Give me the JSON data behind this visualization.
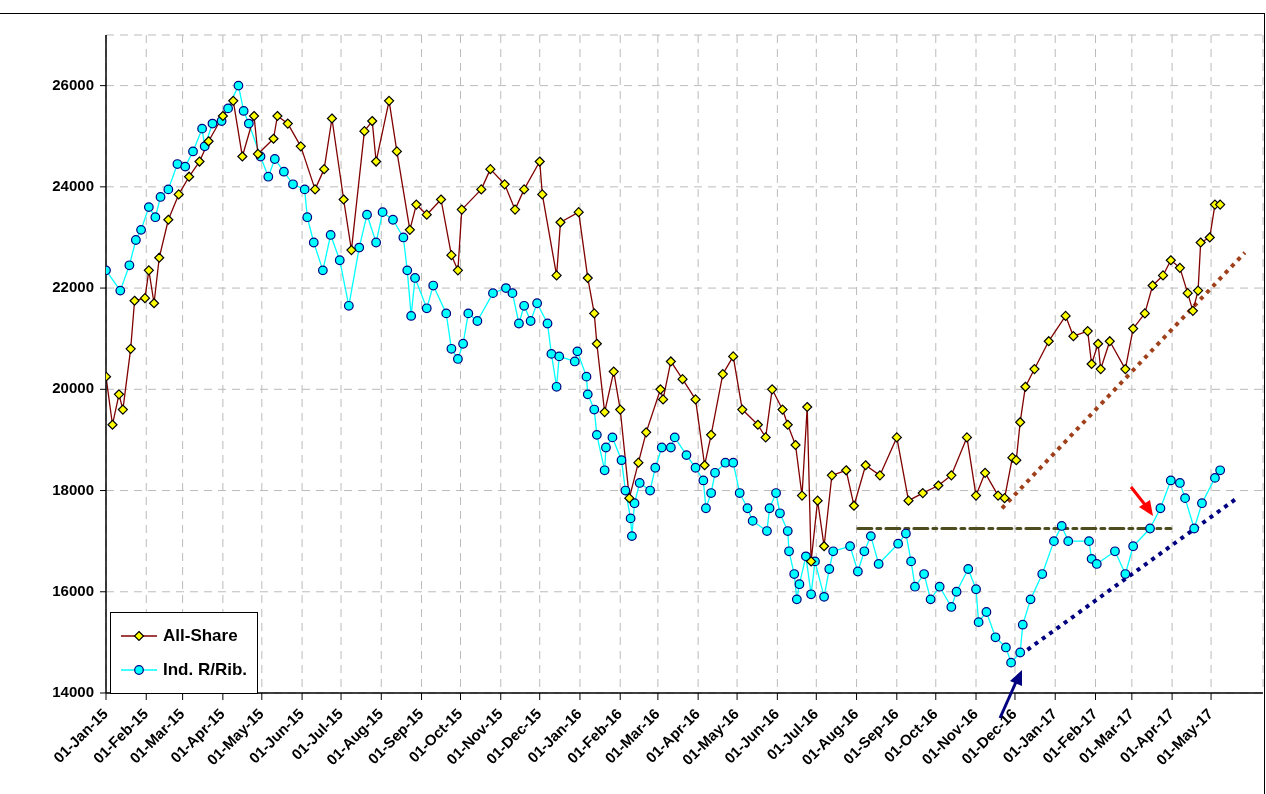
{
  "chart_data": {
    "type": "line",
    "xlim": [
      "2015-01-01",
      "2017-06-10"
    ],
    "xticks": [
      {
        "value": "2015-01-01",
        "label": "01-Jan-15"
      },
      {
        "value": "2015-02-01",
        "label": "01-Feb-15"
      },
      {
        "value": "2015-03-01",
        "label": "01-Mar-15"
      },
      {
        "value": "2015-04-01",
        "label": "01-Apr-15"
      },
      {
        "value": "2015-05-01",
        "label": "01-May-15"
      },
      {
        "value": "2015-06-01",
        "label": "01-Jun-15"
      },
      {
        "value": "2015-07-01",
        "label": "01-Jul-15"
      },
      {
        "value": "2015-08-01",
        "label": "01-Aug-15"
      },
      {
        "value": "2015-09-01",
        "label": "01-Sep-15"
      },
      {
        "value": "2015-10-01",
        "label": "01-Oct-15"
      },
      {
        "value": "2015-11-01",
        "label": "01-Nov-15"
      },
      {
        "value": "2015-12-01",
        "label": "01-Dec-15"
      },
      {
        "value": "2016-01-01",
        "label": "01-Jan-16"
      },
      {
        "value": "2016-02-01",
        "label": "01-Feb-16"
      },
      {
        "value": "2016-03-01",
        "label": "01-Mar-16"
      },
      {
        "value": "2016-04-01",
        "label": "01-Apr-16"
      },
      {
        "value": "2016-05-01",
        "label": "01-May-16"
      },
      {
        "value": "2016-06-01",
        "label": "01-Jun-16"
      },
      {
        "value": "2016-07-01",
        "label": "01-Jul-16"
      },
      {
        "value": "2016-08-01",
        "label": "01-Aug-16"
      },
      {
        "value": "2016-09-01",
        "label": "01-Sep-16"
      },
      {
        "value": "2016-10-01",
        "label": "01-Oct-16"
      },
      {
        "value": "2016-11-01",
        "label": "01-Nov-16"
      },
      {
        "value": "2016-12-01",
        "label": "01-Dec-16"
      },
      {
        "value": "2017-01-01",
        "label": "01-Jan-17"
      },
      {
        "value": "2017-02-01",
        "label": "01-Feb-17"
      },
      {
        "value": "2017-03-01",
        "label": "01-Mar-17"
      },
      {
        "value": "2017-04-01",
        "label": "01-Apr-17"
      },
      {
        "value": "2017-05-01",
        "label": "01-May-17"
      }
    ],
    "ylim": [
      14000,
      27000
    ],
    "yticks": [
      14000,
      16000,
      18000,
      20000,
      22000,
      24000,
      26000
    ],
    "grid": true,
    "legend": "bottom left",
    "series": [
      {
        "name": "All-Share",
        "color": "#800000",
        "marker": "diamond",
        "line_style": "solid",
        "x": [
          "2015-01-01",
          "2015-01-06",
          "2015-01-11",
          "2015-01-14",
          "2015-01-20",
          "2015-01-23",
          "2015-01-31",
          "2015-02-03",
          "2015-02-07",
          "2015-02-11",
          "2015-02-18",
          "2015-02-26",
          "2015-03-06",
          "2015-03-14",
          "2015-03-21",
          "2015-04-01",
          "2015-04-09",
          "2015-04-16",
          "2015-04-25",
          "2015-04-28",
          "2015-05-10",
          "2015-05-13",
          "2015-05-21",
          "2015-05-31",
          "2015-06-11",
          "2015-06-18",
          "2015-06-24",
          "2015-07-03",
          "2015-07-09",
          "2015-07-19",
          "2015-07-25",
          "2015-07-28",
          "2015-08-07",
          "2015-08-13",
          "2015-08-23",
          "2015-08-28",
          "2015-09-05",
          "2015-09-16",
          "2015-09-24",
          "2015-09-29",
          "2015-10-02",
          "2015-10-17",
          "2015-10-24",
          "2015-11-04",
          "2015-11-12",
          "2015-11-19",
          "2015-12-01",
          "2015-12-03",
          "2015-12-14",
          "2015-12-17",
          "2015-12-31",
          "2016-01-07",
          "2016-01-12",
          "2016-01-14",
          "2016-01-20",
          "2016-01-27",
          "2016-02-01",
          "2016-02-08",
          "2016-02-15",
          "2016-02-21",
          "2016-03-03",
          "2016-03-05",
          "2016-03-11",
          "2016-03-20",
          "2016-03-30",
          "2016-04-06",
          "2016-04-11",
          "2016-04-20",
          "2016-04-28",
          "2016-05-05",
          "2016-05-17",
          "2016-05-23",
          "2016-05-28",
          "2016-06-05",
          "2016-06-09",
          "2016-06-15",
          "2016-06-20",
          "2016-06-24",
          "2016-06-27",
          "2016-07-02",
          "2016-07-07",
          "2016-07-13",
          "2016-07-24",
          "2016-07-30",
          "2016-08-08",
          "2016-08-19",
          "2016-09-01",
          "2016-09-10",
          "2016-09-21",
          "2016-10-03",
          "2016-10-13",
          "2016-10-25",
          "2016-11-01",
          "2016-11-08",
          "2016-11-18",
          "2016-11-23",
          "2016-11-29",
          "2016-12-02",
          "2016-12-05",
          "2016-12-09",
          "2016-12-16",
          "2016-12-27",
          "2017-01-09",
          "2017-01-15",
          "2017-01-26",
          "2017-01-29",
          "2017-02-03",
          "2017-02-05",
          "2017-02-12",
          "2017-02-24",
          "2017-03-02",
          "2017-03-11",
          "2017-03-17",
          "2017-03-25",
          "2017-03-31",
          "2017-04-07",
          "2017-04-13",
          "2017-04-17",
          "2017-04-21",
          "2017-04-23",
          "2017-04-30",
          "2017-05-04",
          "2017-05-08"
        ],
        "values": [
          20250,
          19300,
          19900,
          19600,
          20800,
          21750,
          21800,
          22350,
          21700,
          22600,
          23350,
          23850,
          24200,
          24500,
          24900,
          25400,
          25700,
          24600,
          25400,
          24650,
          24950,
          25400,
          25250,
          24800,
          23950,
          24350,
          25350,
          23750,
          22750,
          25100,
          25300,
          24500,
          25700,
          24700,
          23150,
          23650,
          23450,
          23750,
          22650,
          22350,
          23550,
          23950,
          24350,
          24050,
          23550,
          23950,
          24500,
          23850,
          22250,
          23300,
          23500,
          22200,
          21500,
          20900,
          19550,
          20350,
          19600,
          17850,
          18550,
          19150,
          20000,
          19800,
          20550,
          20200,
          19800,
          18500,
          19100,
          20300,
          20650,
          19600,
          19300,
          19050,
          20000,
          19600,
          19300,
          18900,
          17900,
          19650,
          16600,
          17800,
          16900,
          18300,
          18400,
          17700,
          18500,
          18300,
          19050,
          17800,
          17950,
          18100,
          18300,
          19050,
          17900,
          18350,
          17900,
          17850,
          18650,
          18600,
          19350,
          20050,
          20400,
          20950,
          21450,
          21050,
          21150,
          20500,
          20900,
          20400,
          20950,
          20400,
          21200,
          21500,
          22050,
          22250,
          22550,
          22400,
          21900,
          21550,
          21950,
          22900,
          23000,
          23650,
          23650
        ]
      },
      {
        "name": "Ind. R/Rib.",
        "color": "#00ffff",
        "marker": "circle",
        "line_style": "solid",
        "x": [
          "2015-01-01",
          "2015-01-12",
          "2015-01-19",
          "2015-01-24",
          "2015-01-28",
          "2015-02-03",
          "2015-02-08",
          "2015-02-12",
          "2015-02-18",
          "2015-02-25",
          "2015-03-03",
          "2015-03-09",
          "2015-03-16",
          "2015-03-18",
          "2015-03-24",
          "2015-03-31",
          "2015-04-05",
          "2015-04-13",
          "2015-04-17",
          "2015-04-21",
          "2015-04-30",
          "2015-05-06",
          "2015-05-11",
          "2015-05-18",
          "2015-05-25",
          "2015-06-03",
          "2015-06-05",
          "2015-06-10",
          "2015-06-17",
          "2015-06-23",
          "2015-06-30",
          "2015-07-07",
          "2015-07-15",
          "2015-07-21",
          "2015-07-28",
          "2015-08-02",
          "2015-08-10",
          "2015-08-18",
          "2015-08-21",
          "2015-08-24",
          "2015-08-27",
          "2015-09-05",
          "2015-09-10",
          "2015-09-20",
          "2015-09-24",
          "2015-09-29",
          "2015-10-03",
          "2015-10-07",
          "2015-10-14",
          "2015-10-26",
          "2015-11-05",
          "2015-11-10",
          "2015-11-15",
          "2015-11-19",
          "2015-11-24",
          "2015-11-29",
          "2015-12-07",
          "2015-12-10",
          "2015-12-14",
          "2015-12-16",
          "2015-12-28",
          "2015-12-30",
          "2016-01-06",
          "2016-01-07",
          "2016-01-12",
          "2016-01-14",
          "2016-01-20",
          "2016-01-21",
          "2016-01-26",
          "2016-02-02",
          "2016-02-05",
          "2016-02-09",
          "2016-02-10",
          "2016-02-12",
          "2016-02-16",
          "2016-02-24",
          "2016-02-28",
          "2016-03-04",
          "2016-03-11",
          "2016-03-14",
          "2016-03-23",
          "2016-03-30",
          "2016-04-05",
          "2016-04-07",
          "2016-04-11",
          "2016-04-14",
          "2016-04-22",
          "2016-04-28",
          "2016-05-03",
          "2016-05-09",
          "2016-05-13",
          "2016-05-24",
          "2016-05-26",
          "2016-05-31",
          "2016-06-03",
          "2016-06-09",
          "2016-06-10",
          "2016-06-14",
          "2016-06-16",
          "2016-06-18",
          "2016-06-23",
          "2016-06-27",
          "2016-06-30",
          "2016-07-07",
          "2016-07-11",
          "2016-07-14",
          "2016-07-27",
          "2016-08-02",
          "2016-08-07",
          "2016-08-12",
          "2016-08-18",
          "2016-09-02",
          "2016-09-08",
          "2016-09-12",
          "2016-09-15",
          "2016-09-22",
          "2016-09-27",
          "2016-10-04",
          "2016-10-13",
          "2016-10-17",
          "2016-10-26",
          "2016-11-01",
          "2016-11-03",
          "2016-11-09",
          "2016-11-16",
          "2016-11-24",
          "2016-11-28",
          "2016-12-05",
          "2016-12-07",
          "2016-12-13",
          "2016-12-22",
          "2016-12-31",
          "2017-01-06",
          "2017-01-11",
          "2017-01-27",
          "2017-01-29",
          "2017-02-02",
          "2017-02-16",
          "2017-02-24",
          "2017-03-02",
          "2017-03-15",
          "2017-03-23",
          "2017-03-31",
          "2017-04-07",
          "2017-04-11",
          "2017-04-18",
          "2017-04-24",
          "2017-05-04",
          "2017-05-08"
        ],
        "values": [
          22350,
          21950,
          22450,
          22950,
          23150,
          23600,
          23400,
          23800,
          23950,
          24450,
          24400,
          24700,
          25150,
          24800,
          25250,
          25300,
          25550,
          26000,
          25500,
          25250,
          24600,
          24200,
          24550,
          24300,
          24050,
          23950,
          23400,
          22900,
          22350,
          23050,
          22550,
          21650,
          22800,
          23450,
          22900,
          23500,
          23350,
          23000,
          22350,
          21450,
          22200,
          21600,
          22050,
          21500,
          20800,
          20600,
          20900,
          21500,
          21350,
          21900,
          22000,
          21900,
          21300,
          21650,
          21350,
          21700,
          21300,
          20700,
          20050,
          20650,
          20550,
          20750,
          20250,
          19900,
          19600,
          19100,
          18400,
          18850,
          19050,
          18600,
          18000,
          17450,
          17100,
          17750,
          18150,
          18000,
          18450,
          18850,
          18850,
          19050,
          18700,
          18450,
          18200,
          17650,
          17950,
          18350,
          18550,
          18550,
          17950,
          17650,
          17400,
          17200,
          17650,
          17950,
          17550,
          17200,
          16800,
          16350,
          15850,
          16150,
          16700,
          15950,
          16600,
          15900,
          16450,
          16800,
          16900,
          16400,
          16800,
          17100,
          16550,
          16950,
          17150,
          16600,
          16100,
          16350,
          15850,
          16100,
          15700,
          16000,
          16450,
          16050,
          15400,
          15600,
          15100,
          14900,
          14600,
          14800,
          15350,
          15850,
          16350,
          17000,
          17300,
          17000,
          17000,
          16650,
          16550,
          16800,
          16350,
          16900,
          17250,
          17650,
          18200,
          18150,
          17850,
          17250,
          17750,
          18250,
          18400
        ]
      },
      {
        "color": "#a0401a",
        "marker": "none",
        "line_style": "dotted",
        "x": [
          "2016-11-21",
          "2017-05-27"
        ],
        "values": [
          17650,
          22700
        ]
      },
      {
        "color": "#000080",
        "marker": "none",
        "line_style": "dotted",
        "x": [
          "2016-12-05",
          "2017-05-21"
        ],
        "values": [
          14750,
          17850
        ]
      },
      {
        "color": "#4d4d1f",
        "marker": "none",
        "line_style": "dashed",
        "x": [
          "2016-08-02",
          "2017-03-31"
        ],
        "values": [
          17250,
          17250
        ]
      }
    ]
  }
}
